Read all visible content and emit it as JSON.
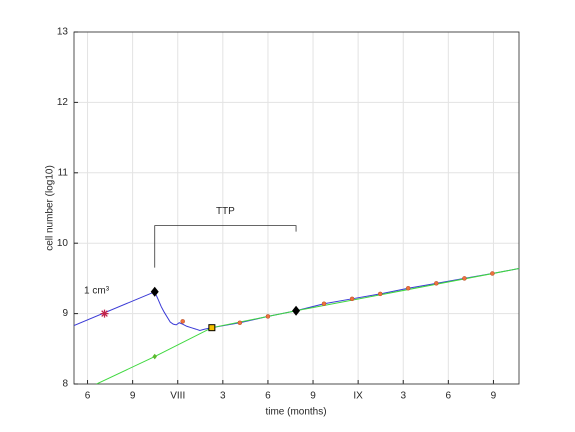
{
  "chart_data": {
    "type": "line",
    "xlabel": "time (months)",
    "ylabel": "cell number (log10)",
    "xlim": [
      5.1,
      34.7
    ],
    "ylim": [
      8,
      13
    ],
    "xticks": [
      6,
      9,
      {
        "value": 12,
        "label": "VIII"
      },
      {
        "value": 15,
        "label": "3"
      },
      {
        "value": 18,
        "label": "6"
      },
      {
        "value": 21,
        "label": "9"
      },
      {
        "value": 24,
        "label": "IX"
      },
      {
        "value": 27,
        "label": "3"
      },
      {
        "value": 30,
        "label": "6"
      },
      {
        "value": 33,
        "label": "9"
      }
    ],
    "yticks": [
      8,
      9,
      10,
      11,
      12,
      13
    ],
    "grid": true,
    "series": [
      {
        "color": "#3a3ad6",
        "x": [
          5.1,
          10.47
        ],
        "values": [
          8.83,
          9.31
        ]
      },
      {
        "color": "#3a3ad6",
        "x": [
          10.47,
          10.7,
          10.9,
          11.1,
          11.3,
          11.5,
          11.7,
          11.9,
          12.1,
          12.33,
          12.6,
          12.9,
          13.2,
          13.47,
          13.8,
          14.27,
          16.13,
          18.0,
          19.87,
          21.73,
          23.6,
          25.47,
          27.33,
          29.2,
          31.07,
          32.93,
          34.7
        ],
        "values": [
          9.31,
          9.2,
          9.1,
          9.02,
          8.95,
          8.88,
          8.85,
          8.84,
          8.87,
          8.85,
          8.82,
          8.8,
          8.78,
          8.76,
          8.78,
          8.8,
          8.87,
          8.96,
          9.04,
          9.14,
          9.21,
          9.28,
          9.36,
          9.43,
          9.5,
          9.57,
          9.64
        ]
      },
      {
        "color": "#3fd83f",
        "x": [
          6.6,
          10.47,
          14.27,
          19.87,
          34.7
        ],
        "values": [
          8.0,
          8.39,
          8.8,
          9.04,
          9.64
        ]
      }
    ],
    "markers": [
      {
        "shape": "star",
        "color": "#c0234b",
        "x": [
          7.13
        ],
        "values": [
          9.0
        ]
      },
      {
        "shape": "dot",
        "color": "#f07040",
        "x": [
          12.33,
          16.13,
          18.0,
          21.73,
          23.6,
          25.47,
          27.33,
          29.2,
          31.07,
          32.93
        ],
        "values": [
          8.89,
          8.87,
          8.96,
          9.14,
          9.21,
          9.28,
          9.36,
          9.43,
          9.5,
          9.57
        ]
      },
      {
        "shape": "diamond",
        "color": "#5cb82e",
        "x": [
          10.47
        ],
        "values": [
          8.39
        ]
      },
      {
        "shape": "square",
        "color": "#f5c000",
        "x": [
          14.27
        ],
        "values": [
          8.8
        ]
      },
      {
        "shape": "diamond",
        "color": "#000000",
        "x": [
          10.47,
          19.87
        ],
        "values": [
          9.31,
          9.04
        ]
      }
    ],
    "annotations": [
      {
        "text": "1 cm³",
        "x": 6.6,
        "y": 9.32
      },
      {
        "text": "TTP",
        "x": [
          10.47,
          19.87
        ],
        "y": 10.25
      }
    ]
  }
}
